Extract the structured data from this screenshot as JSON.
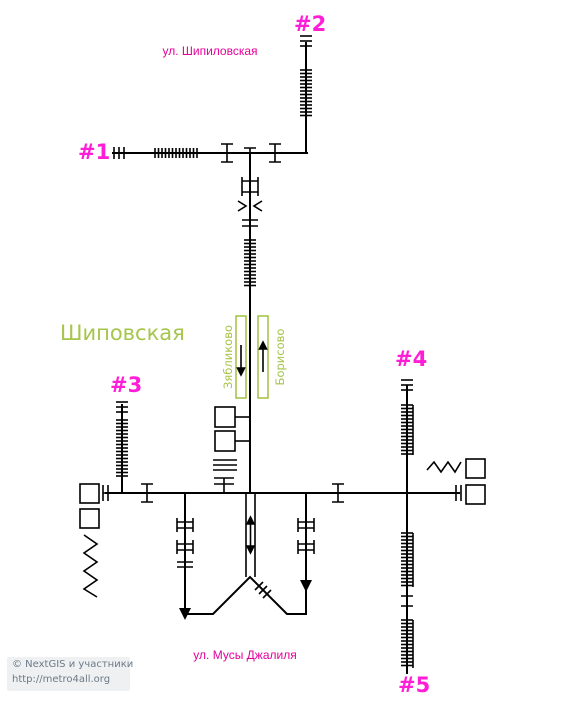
{
  "station": {
    "name": "Шиповская",
    "name_color": "#a6c54b",
    "platform": {
      "left_track": "Зябликово",
      "right_track": "Борисово",
      "left_direction": "down",
      "right_direction": "up"
    }
  },
  "streets": {
    "top": "ул. Шипиловская",
    "bottom": "ул. Мусы Джалиля"
  },
  "exits": [
    {
      "label": "#1"
    },
    {
      "label": "#2"
    },
    {
      "label": "#3"
    },
    {
      "label": "#4"
    },
    {
      "label": "#5"
    }
  ],
  "colors": {
    "exit_labels": "#ff1dd7",
    "street_labels": "#e5009a",
    "lines": "#000000"
  },
  "copyright": {
    "line1": "© NextGIS и участники",
    "line2": "http://metro4all.org"
  }
}
